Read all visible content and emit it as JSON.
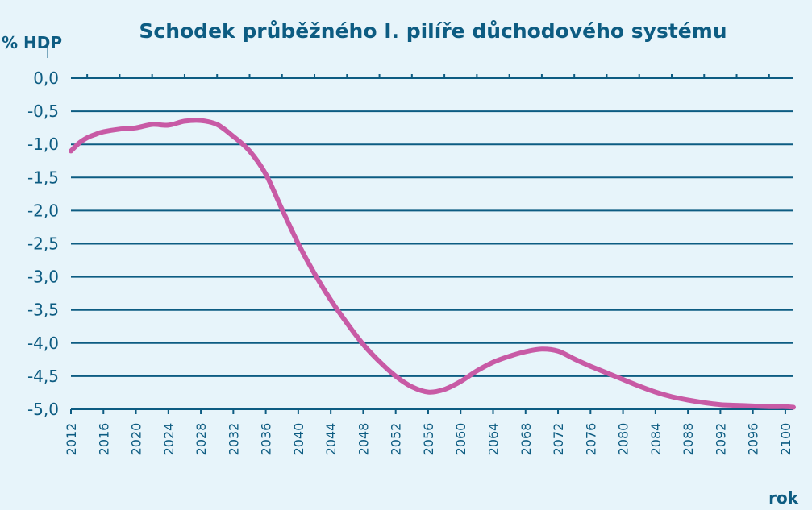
{
  "chart_data": {
    "type": "line",
    "title": "Schodek průběžného I. pilíře důchodového systému",
    "ylabel": "% HDP",
    "xlabel": "rok",
    "ylim": [
      -5.0,
      0.0
    ],
    "xlim": [
      2012,
      2101
    ],
    "yticks": [
      "0,0",
      "-0,5",
      "-1,0",
      "-1,5",
      "-2,0",
      "-2,5",
      "-3,0",
      "-3,5",
      "-4,0",
      "-4,5",
      "-5,0"
    ],
    "ytick_values": [
      0,
      -0.5,
      -1.0,
      -1.5,
      -2.0,
      -2.5,
      -3.0,
      -3.5,
      -4.0,
      -4.5,
      -5.0
    ],
    "xticks": [
      "2012",
      "2016",
      "2020",
      "2024",
      "2028",
      "2032",
      "2036",
      "2040",
      "2044",
      "2048",
      "2052",
      "2056",
      "2060",
      "2064",
      "2068",
      "2072",
      "2076",
      "2080",
      "2084",
      "2088",
      "2092",
      "2096",
      "2100"
    ],
    "xtick_values": [
      2012,
      2016,
      2020,
      2024,
      2028,
      2032,
      2036,
      2040,
      2044,
      2048,
      2052,
      2056,
      2060,
      2064,
      2068,
      2072,
      2076,
      2080,
      2084,
      2088,
      2092,
      2096,
      2100
    ],
    "grid": true,
    "series": [
      {
        "x": [
          2012,
          2013,
          2014,
          2015,
          2016,
          2018,
          2020,
          2022,
          2024,
          2026,
          2028,
          2030,
          2032,
          2034,
          2036,
          2038,
          2040,
          2042,
          2044,
          2046,
          2048,
          2050,
          2052,
          2054,
          2056,
          2058,
          2060,
          2062,
          2064,
          2066,
          2068,
          2070,
          2072,
          2074,
          2076,
          2078,
          2080,
          2082,
          2084,
          2086,
          2088,
          2090,
          2092,
          2094,
          2096,
          2098,
          2100,
          2101
        ],
        "values": [
          -1.1,
          -0.98,
          -0.9,
          -0.85,
          -0.81,
          -0.77,
          -0.75,
          -0.7,
          -0.71,
          -0.65,
          -0.64,
          -0.7,
          -0.88,
          -1.1,
          -1.45,
          -1.98,
          -2.5,
          -2.95,
          -3.35,
          -3.7,
          -4.02,
          -4.28,
          -4.5,
          -4.66,
          -4.74,
          -4.7,
          -4.58,
          -4.42,
          -4.29,
          -4.2,
          -4.13,
          -4.09,
          -4.12,
          -4.24,
          -4.35,
          -4.45,
          -4.55,
          -4.65,
          -4.74,
          -4.81,
          -4.86,
          -4.9,
          -4.93,
          -4.94,
          -4.95,
          -4.96,
          -4.96,
          -4.97
        ]
      }
    ]
  },
  "colors": {
    "background": "#e7f4fa",
    "text": "#0d5c82",
    "grid": "#0d5c82",
    "line": "#c85aa5"
  }
}
